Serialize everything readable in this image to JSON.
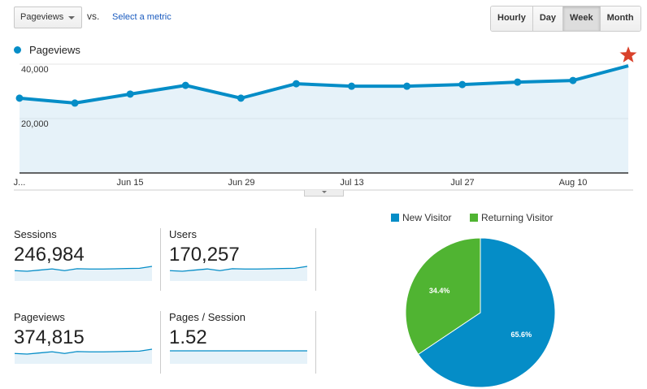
{
  "toolbar": {
    "metric_selected": "Pageviews",
    "vs_label": "vs.",
    "select_metric_link": "Select a metric",
    "intervals": [
      {
        "label": "Hourly",
        "active": false
      },
      {
        "label": "Day",
        "active": false
      },
      {
        "label": "Week",
        "active": true
      },
      {
        "label": "Month",
        "active": false
      }
    ]
  },
  "chart_data": [
    {
      "type": "area",
      "series": [
        {
          "name": "Pageviews",
          "color": "#058dc7",
          "values": [
            27500,
            25700,
            29000,
            32200,
            27500,
            32800,
            31900,
            31900,
            32500,
            33400,
            34000,
            39400
          ]
        }
      ],
      "y_ticks": [
        "40,000",
        "20,000"
      ],
      "ylim": [
        0,
        40000
      ],
      "x_tick_labels": [
        "J...",
        "Jun 15",
        "Jun 29",
        "Jul 13",
        "Jul 27",
        "Aug 10"
      ],
      "grid": true,
      "legend": "top-left",
      "annotation": "star-icon on last point"
    },
    {
      "type": "pie",
      "legend": "top",
      "slices": [
        {
          "name": "New Visitor",
          "value": 65.6,
          "label": "65.6%",
          "color": "#058dc7"
        },
        {
          "name": "Returning Visitor",
          "value": 34.4,
          "label": "34.4%",
          "color": "#50b432"
        }
      ]
    }
  ],
  "tiles": [
    {
      "label": "Sessions",
      "value": "246,984"
    },
    {
      "label": "Users",
      "value": "170,257"
    },
    {
      "label": "Pageviews",
      "value": "374,815"
    },
    {
      "label": "Pages / Session",
      "value": "1.52"
    }
  ]
}
